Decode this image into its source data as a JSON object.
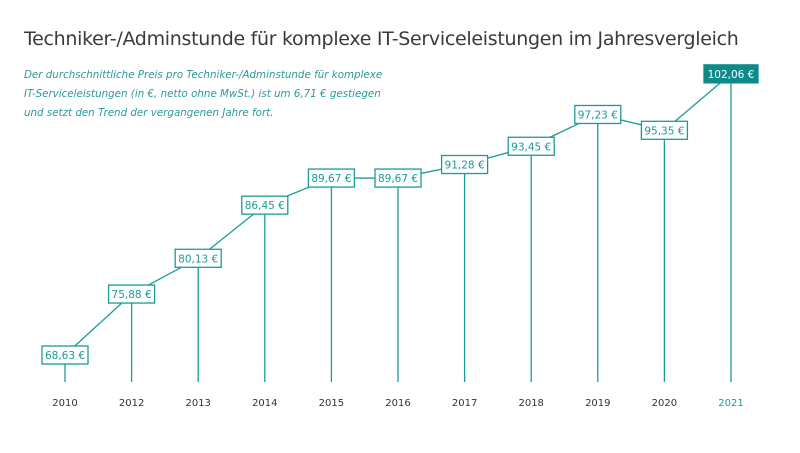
{
  "chart_data": {
    "type": "line",
    "title": "Techniker-/Adminstunde für komplexe IT-Serviceleistungen im Jahresvergleich",
    "subtitle": "Der durchschnittliche Preis pro Techniker-/Adminstunde für komplexe IT-Serviceleistungen (in €, netto ohne MwSt.) ist um 6,71 € gestiegen und setzt den Trend der vergangenen Jahre fort.",
    "categories": [
      "2010",
      "2012",
      "2013",
      "2014",
      "2015",
      "2016",
      "2017",
      "2018",
      "2019",
      "2020",
      "2021"
    ],
    "values": [
      68.63,
      75.88,
      80.13,
      86.45,
      89.67,
      89.67,
      91.28,
      93.45,
      97.23,
      95.35,
      102.06
    ],
    "data_labels": [
      "68,63 €",
      "75,88 €",
      "80,13 €",
      "86,45 €",
      "89,67 €",
      "89,67 €",
      "91,28 €",
      "93,45 €",
      "97,23 €",
      "95,35 €",
      "102,06 €"
    ],
    "highlighted": "2021",
    "grid": false,
    "colors": {
      "accent": "#1a9a9a",
      "highlight": "#0e8a8a",
      "axis_text": "#333333"
    }
  }
}
